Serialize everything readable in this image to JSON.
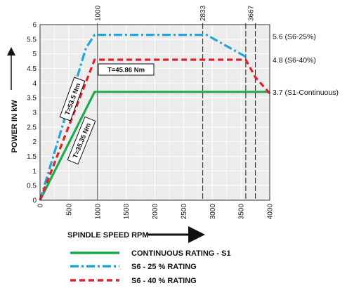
{
  "chart_data": {
    "type": "line",
    "title": "",
    "xlabel": "SPINDLE SPEED RPM",
    "ylabel": "POWER IN  kW",
    "xlim": [
      0,
      4000
    ],
    "ylim": [
      0,
      6
    ],
    "grid": true,
    "x_ticks": [
      "0",
      "500",
      "1000",
      "1500",
      "2000",
      "2500",
      "3000",
      "3500",
      "4000"
    ],
    "y_ticks": [
      "0",
      "0.5",
      "1",
      "1.5",
      "2",
      "2.5",
      "3",
      "3.5",
      "4",
      "4.5",
      "5",
      "5.5",
      "6"
    ],
    "top_marks": [
      {
        "x": 1000,
        "label": "1000"
      },
      {
        "x": 2833,
        "label": "2833"
      },
      {
        "x": 3667,
        "label": "3667"
      }
    ],
    "extra_vertical_lines": [
      2833,
      3583,
      3750
    ],
    "series": [
      {
        "name": "CONTINUOUS RATING - S1",
        "color": "#1faa4b",
        "dash": "solid",
        "x": [
          0,
          950,
          4000
        ],
        "y": [
          0,
          3.7,
          3.7
        ]
      },
      {
        "name": "S6 - 25 % RATING",
        "color": "#22a6d8",
        "dash": "dashdot",
        "x": [
          0,
          800,
          950,
          2900,
          3583
        ],
        "y": [
          0,
          5.2,
          5.65,
          5.65,
          4.9
        ]
      },
      {
        "name": "S6 - 40 % RATING",
        "color": "#e0202a",
        "dash": "dashed",
        "x": [
          0,
          950,
          3583,
          3750,
          4000
        ],
        "y": [
          0,
          4.8,
          4.8,
          4.2,
          3.65
        ]
      }
    ],
    "right_labels": [
      {
        "y": 5.6,
        "text": "5.6 (S6-25%)"
      },
      {
        "y": 4.8,
        "text": "4.8 (S6-40%)"
      },
      {
        "y": 3.7,
        "text": "3.7 (S1-Continuous)"
      }
    ],
    "annotations": [
      {
        "text": "T=53.5 Nm"
      },
      {
        "text": "T=45.86 Nm"
      },
      {
        "text": "T=35.35 Nm"
      }
    ]
  },
  "legend": [
    {
      "label": "CONTINUOUS RATING - S1",
      "color": "#1faa4b",
      "dash": "solid"
    },
    {
      "label": "S6 - 25 % RATING",
      "color": "#22a6d8",
      "dash": "dashdot"
    },
    {
      "label": "S6 - 40 % RATING",
      "color": "#e0202a",
      "dash": "dashed"
    }
  ]
}
